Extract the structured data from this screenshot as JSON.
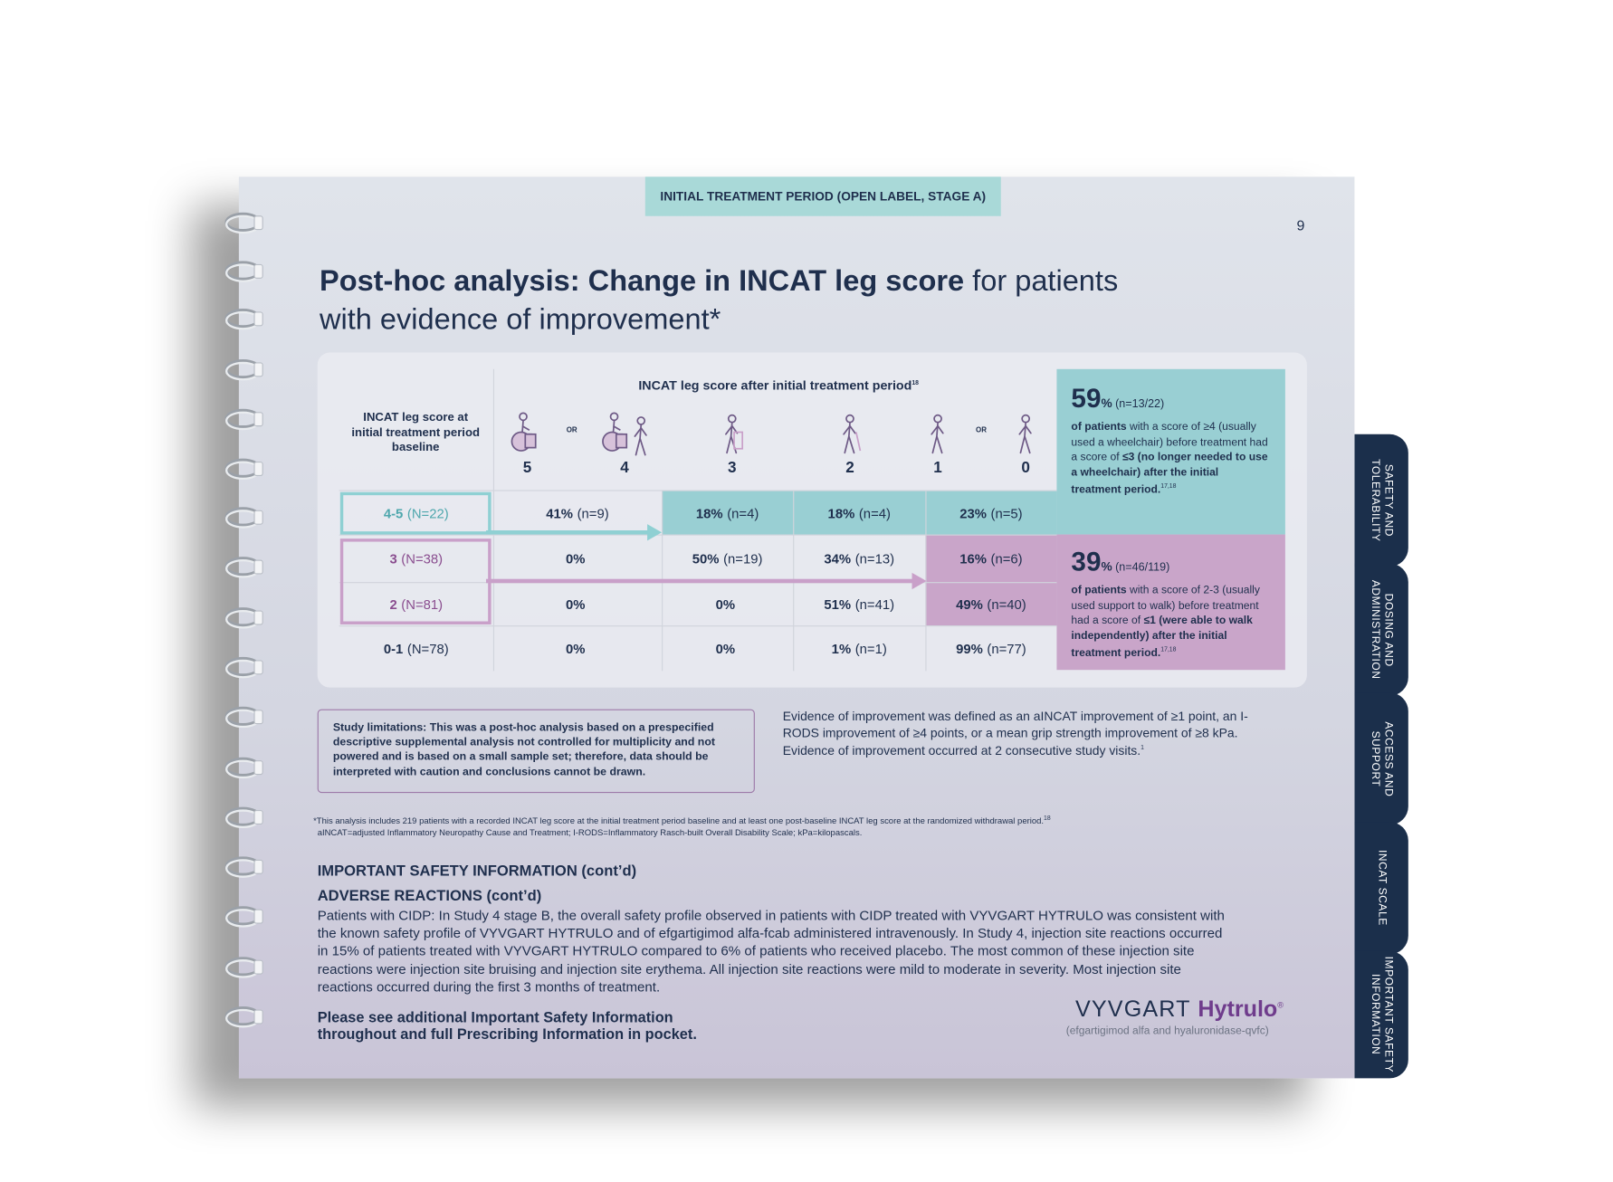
{
  "header_tab": "INITIAL TREATMENT PERIOD (OPEN LABEL, STAGE A)",
  "page_number": "9",
  "title": {
    "bold": "Post-hoc analysis: Change in INCAT leg score",
    "regular": " for patients with evidence of improvement*"
  },
  "table": {
    "row_header": "INCAT leg score at initial treatment period baseline",
    "column_header": "INCAT leg score after initial treatment period",
    "column_header_ref": "18",
    "or_label": "OR",
    "scores": [
      "5",
      "4",
      "3",
      "2",
      "1",
      "0"
    ],
    "rows": [
      {
        "score": "4-5",
        "n": "(N=22)",
        "cells": [
          {
            "pct": "41%",
            "n": "(n=9)"
          },
          {
            "pct": "18%",
            "n": "(n=4)"
          },
          {
            "pct": "18%",
            "n": "(n=4)"
          },
          {
            "pct": "23%",
            "n": "(n=5)"
          }
        ]
      },
      {
        "score": "3",
        "n": "(N=38)",
        "cells": [
          {
            "pct": "0%"
          },
          {
            "pct": "50%",
            "n": "(n=19)"
          },
          {
            "pct": "34%",
            "n": "(n=13)"
          },
          {
            "pct": "16%",
            "n": "(n=6)"
          }
        ]
      },
      {
        "score": "2",
        "n": "(N=81)",
        "cells": [
          {
            "pct": "0%"
          },
          {
            "pct": "0%"
          },
          {
            "pct": "51%",
            "n": "(n=41)"
          },
          {
            "pct": "49%",
            "n": "(n=40)"
          }
        ]
      },
      {
        "score": "0-1",
        "n": "(N=78)",
        "cells": [
          {
            "pct": "0%"
          },
          {
            "pct": "0%"
          },
          {
            "pct": "1%",
            "n": "(n=1)"
          },
          {
            "pct": "99%",
            "n": "(n=77)"
          }
        ]
      }
    ]
  },
  "callouts": [
    {
      "value": "59",
      "unit": "%",
      "n": "(n=13/22)",
      "segments": [
        {
          "text": "of patients",
          "bold": true
        },
        {
          "text": " with a score of ≥4 (usually used a wheelchair) before treatment had a score of ",
          "bold": false
        },
        {
          "text": "≤3 (no longer needed to use a wheelchair) after the initial treatment period.",
          "bold": true
        }
      ],
      "ref": "17,18"
    },
    {
      "value": "39",
      "unit": "%",
      "n": "(n=46/119)",
      "segments": [
        {
          "text": "of patients",
          "bold": true
        },
        {
          "text": " with a score of 2-3 (usually used support to walk) before treatment had a score of ",
          "bold": false
        },
        {
          "text": "≤1 (were able to walk independently) after the initial treatment period.",
          "bold": true
        }
      ],
      "ref": "17,18"
    }
  ],
  "limitations": "Study limitations: This was a post-hoc analysis based on a prespecified descriptive supplemental analysis not controlled for multiplicity and not powered and is based on a small sample set; therefore, data should be interpreted with caution and conclusions cannot be drawn.",
  "evidence": {
    "text": "Evidence of improvement was defined as an aINCAT improvement of ≥1 point, an I-RODS improvement of ≥4 points, or a mean grip strength improvement of ≥8 kPa. Evidence of improvement occurred at 2 consecutive study visits.",
    "ref": "1"
  },
  "footnotes": [
    {
      "text": "*This analysis includes 219 patients with a recorded INCAT leg score at the initial treatment period baseline and at least one post-baseline INCAT leg score at the randomized withdrawal period.",
      "ref": "18"
    },
    {
      "text": "aINCAT=adjusted Inflammatory Neuropathy Cause and Treatment; I-RODS=Inflammatory Rasch-built Overall Disability Scale; kPa=kilopascals."
    }
  ],
  "safety": {
    "heading": "IMPORTANT SAFETY INFORMATION (cont’d)",
    "subheading": "ADVERSE REACTIONS (cont’d)",
    "paragraph": "Patients with CIDP: In Study 4 stage B, the overall safety profile observed in patients with CIDP treated with VYVGART HYTRULO was consistent with the known safety profile of VYVGART HYTRULO and of efgartigimod alfa-fcab administered intravenously. In Study 4, injection site reactions occurred in 15% of patients treated with VYVGART HYTRULO compared to 6% of patients who received placebo. The most common of these injection site reactions were injection site bruising and injection site erythema. All injection site reactions were mild to moderate in severity. Most injection site reactions occurred during the first 3 months of treatment.",
    "closing": "Please see additional Important Safety Information throughout and full Prescribing Information in pocket."
  },
  "logo": {
    "brand": "VYVGART",
    "product": "Hytrulo",
    "mark": "®",
    "generic": "(efgartigimod alfa and hyaluronidase-qvfc)"
  },
  "tabs": [
    "SAFETY AND TOLERABILITY",
    "DOSING AND ADMINISTRATION",
    "ACCESS AND SUPPORT",
    "INCAT SCALE",
    "IMPORTANT SAFETY INFORMATION"
  ]
}
